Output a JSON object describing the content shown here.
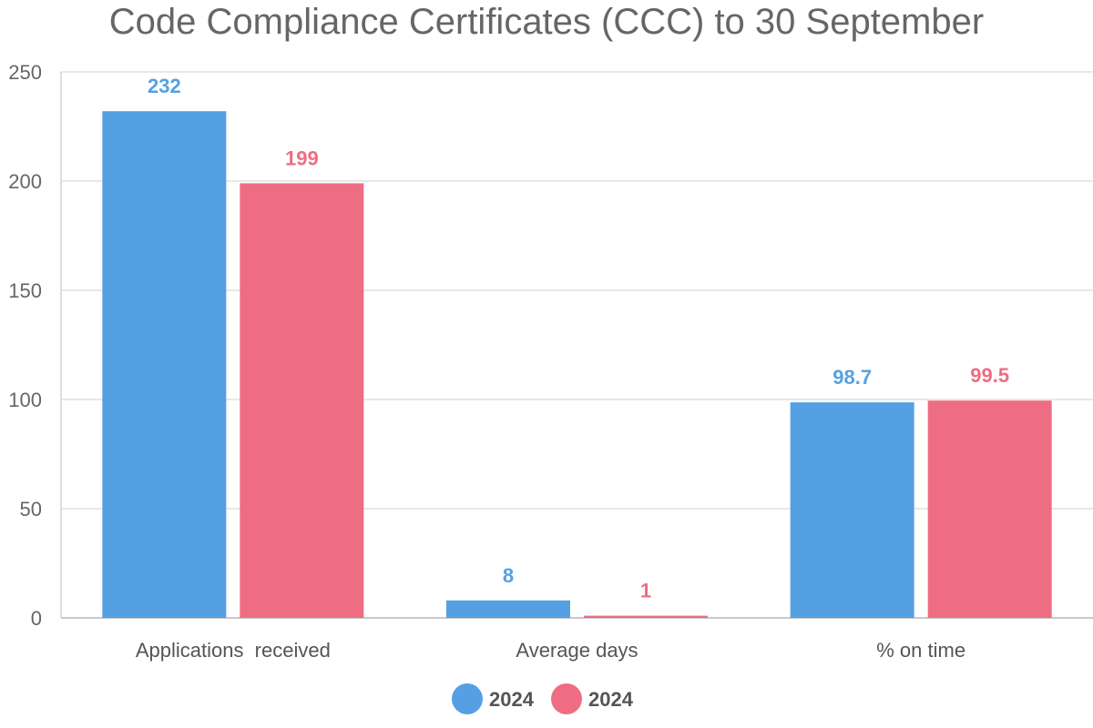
{
  "chart_data": {
    "type": "bar",
    "title": "Code Compliance Certificates (CCC) to 30 September",
    "categories": [
      "Applications  received",
      "Average days",
      "% on time"
    ],
    "series": [
      {
        "name": "2024",
        "color": "#55A0E3",
        "values": [
          232,
          8,
          98.7
        ]
      },
      {
        "name": "2024",
        "color": "#EE6D82",
        "values": [
          199,
          1,
          99.5
        ]
      }
    ],
    "ylim": [
      0,
      250
    ],
    "yticks": [
      0,
      50,
      100,
      150,
      200,
      250
    ],
    "grid": true,
    "legend_position": "bottom-center",
    "data_labels": true
  }
}
